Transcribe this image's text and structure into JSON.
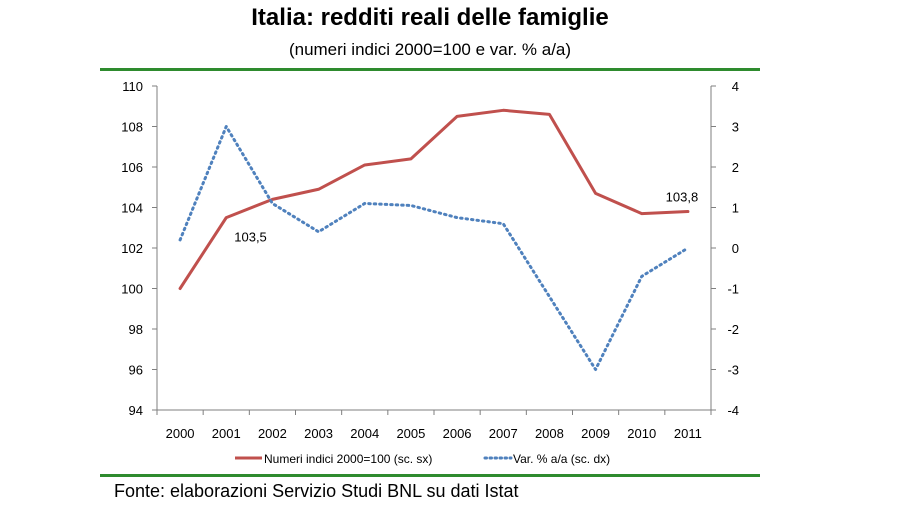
{
  "title": "Italia: redditi reali delle famiglie",
  "subtitle": "(numeri indici 2000=100 e var. % a/a)",
  "source": "Fonte: elaborazioni Servizio Studi BNL su dati Istat",
  "colors": {
    "rule": "#2e8b2e",
    "index_line": "#c0504d",
    "var_line": "#4f81bd",
    "axis": "#7f7f7f"
  },
  "chart_data": {
    "type": "line",
    "categories": [
      "2000",
      "2001",
      "2002",
      "2003",
      "2004",
      "2005",
      "2006",
      "2007",
      "2008",
      "2009",
      "2010",
      "2011"
    ],
    "series": [
      {
        "name": "Numeri indici 2000=100 (sc. sx)",
        "axis": "left",
        "style": "solid",
        "values": [
          100.0,
          103.5,
          104.4,
          104.9,
          106.1,
          106.4,
          108.5,
          108.8,
          108.6,
          104.7,
          103.7,
          103.8
        ]
      },
      {
        "name": "Var. % a/a (sc. dx)",
        "axis": "right",
        "style": "dotted",
        "values": [
          0.2,
          3.0,
          1.1,
          0.4,
          1.1,
          1.05,
          0.75,
          0.6,
          -1.2,
          -3.0,
          -0.7,
          0.0
        ]
      }
    ],
    "y_left": {
      "min": 94,
      "max": 110,
      "ticks": [
        "94",
        "96",
        "98",
        "100",
        "102",
        "104",
        "106",
        "108",
        "110"
      ]
    },
    "y_right": {
      "min": -4,
      "max": 4,
      "ticks": [
        "-4",
        "-3",
        "-2",
        "-1",
        "0",
        "1",
        "2",
        "3",
        "4"
      ]
    },
    "data_labels": [
      {
        "series": 0,
        "index": 1,
        "text": "103,5"
      },
      {
        "series": 0,
        "index": 11,
        "text": "103,8"
      }
    ],
    "grid": false,
    "legend_position": "bottom"
  }
}
